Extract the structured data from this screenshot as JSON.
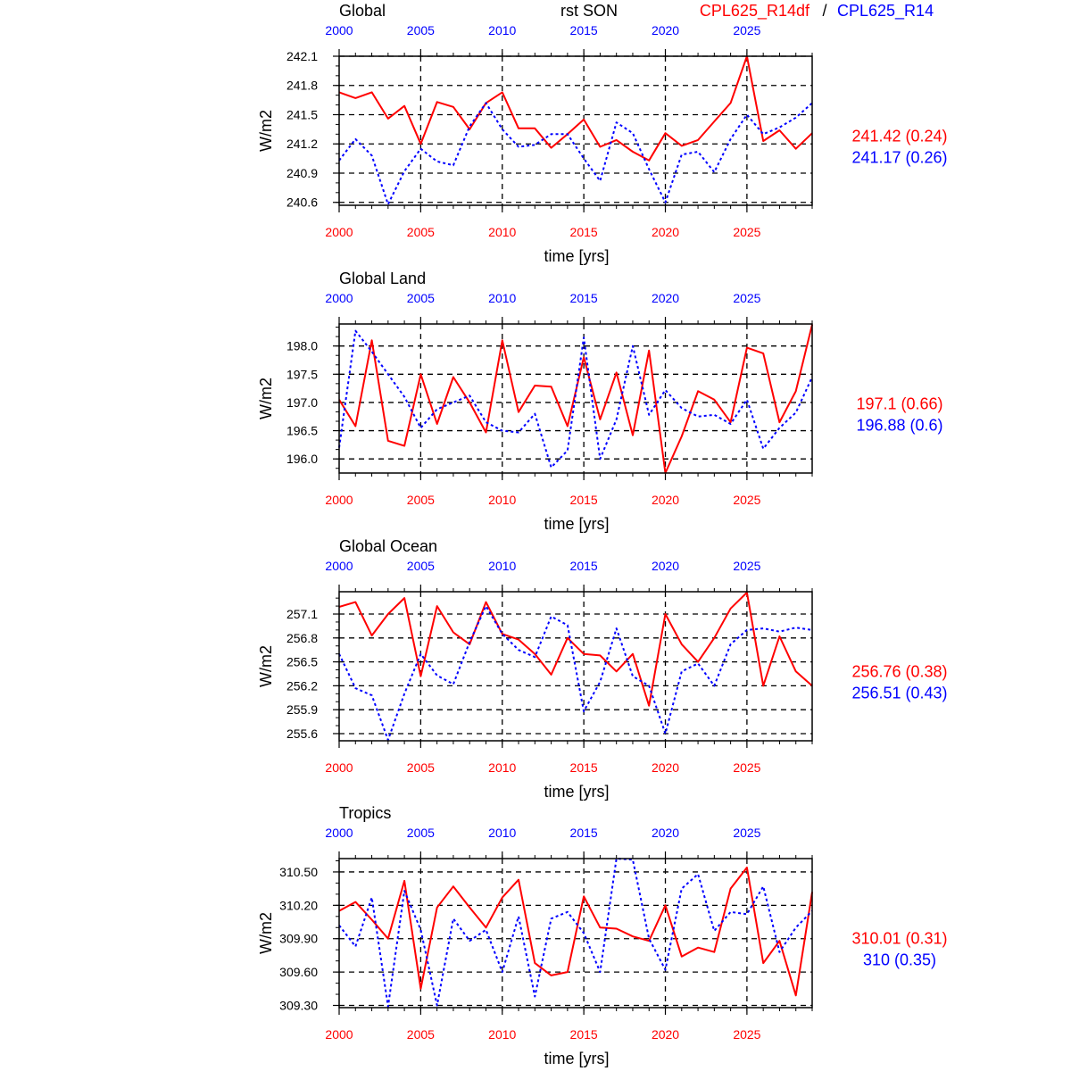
{
  "header": {
    "variable": "rst SON",
    "legend": [
      {
        "name": "CPL625_R14df",
        "color": "#ff0000"
      },
      {
        "separator": "/"
      },
      {
        "name": "CPL625_R14",
        "color": "#0000ff"
      }
    ]
  },
  "chart_data": [
    {
      "type": "line",
      "title": "Global",
      "xlabel": "time [yrs]",
      "ylabel": "W/m2",
      "xlim": [
        2000,
        2029
      ],
      "ylim": [
        240.57,
        242.1
      ],
      "yticks": [
        "240.6",
        "240.9",
        "241.2",
        "241.5",
        "241.8",
        "242.1"
      ],
      "xticks": [
        2000,
        2005,
        2010,
        2015,
        2020,
        2025
      ],
      "grid": true,
      "means": [
        "241.42 (0.24)",
        "241.17 (0.26)"
      ],
      "x": [
        2000,
        2001,
        2002,
        2003,
        2004,
        2005,
        2006,
        2007,
        2008,
        2009,
        2010,
        2011,
        2012,
        2013,
        2014,
        2015,
        2016,
        2017,
        2018,
        2019,
        2020,
        2021,
        2022,
        2023,
        2024,
        2025,
        2026,
        2027,
        2028,
        2029
      ],
      "series": [
        {
          "name": "CPL625_R14df",
          "color": "#ff0000",
          "dash": false,
          "values": [
            241.73,
            241.67,
            241.73,
            241.46,
            241.59,
            241.2,
            241.63,
            241.58,
            241.35,
            241.62,
            241.73,
            241.36,
            241.36,
            241.16,
            241.3,
            241.45,
            241.17,
            241.24,
            241.12,
            241.03,
            241.31,
            241.18,
            241.24,
            241.43,
            241.62,
            242.1,
            241.23,
            241.34,
            241.15,
            241.31
          ]
        },
        {
          "name": "CPL625_R14",
          "color": "#0000ff",
          "dash": true,
          "values": [
            241.03,
            241.25,
            241.08,
            240.58,
            240.92,
            241.15,
            241.02,
            240.98,
            241.38,
            241.62,
            241.35,
            241.17,
            241.19,
            241.3,
            241.3,
            241.05,
            240.82,
            241.42,
            241.31,
            240.94,
            240.6,
            241.09,
            241.12,
            240.91,
            241.25,
            241.5,
            241.3,
            241.37,
            241.47,
            241.62
          ]
        }
      ]
    },
    {
      "type": "line",
      "title": "Global Land",
      "xlabel": "time [yrs]",
      "ylabel": "W/m2",
      "xlim": [
        2000,
        2029
      ],
      "ylim": [
        195.75,
        198.39
      ],
      "yticks": [
        "196.0",
        "196.5",
        "197.0",
        "197.5",
        "198.0"
      ],
      "xticks": [
        2000,
        2005,
        2010,
        2015,
        2020,
        2025
      ],
      "grid": true,
      "means": [
        "197.1 (0.66)",
        "196.88 (0.6)"
      ],
      "x": [
        2000,
        2001,
        2002,
        2003,
        2004,
        2005,
        2006,
        2007,
        2008,
        2009,
        2010,
        2011,
        2012,
        2013,
        2014,
        2015,
        2016,
        2017,
        2018,
        2019,
        2020,
        2021,
        2022,
        2023,
        2024,
        2025,
        2026,
        2027,
        2028,
        2029
      ],
      "series": [
        {
          "name": "CPL625_R14df",
          "color": "#ff0000",
          "dash": false,
          "values": [
            197.05,
            196.58,
            198.1,
            196.32,
            196.23,
            197.5,
            196.62,
            197.45,
            197.0,
            196.47,
            198.1,
            196.83,
            197.3,
            197.28,
            196.58,
            197.8,
            196.7,
            197.53,
            196.42,
            197.92,
            195.75,
            196.4,
            197.2,
            197.05,
            196.65,
            197.97,
            197.87,
            196.65,
            197.2,
            198.38
          ]
        },
        {
          "name": "CPL625_R14",
          "color": "#0000ff",
          "dash": true,
          "values": [
            196.2,
            198.27,
            197.9,
            197.5,
            197.1,
            196.55,
            196.88,
            197.0,
            197.12,
            196.65,
            196.5,
            196.47,
            196.8,
            195.85,
            196.15,
            198.15,
            196.0,
            196.7,
            198.0,
            196.78,
            197.22,
            196.9,
            196.75,
            196.78,
            196.62,
            197.05,
            196.18,
            196.55,
            196.82,
            197.45
          ]
        }
      ]
    },
    {
      "type": "line",
      "title": "Global Ocean",
      "xlabel": "time [yrs]",
      "ylabel": "W/m2",
      "xlim": [
        2000,
        2029
      ],
      "ylim": [
        255.51,
        257.38
      ],
      "yticks": [
        "255.6",
        "255.9",
        "256.2",
        "256.5",
        "256.8",
        "257.1"
      ],
      "xticks": [
        2000,
        2005,
        2010,
        2015,
        2020,
        2025
      ],
      "grid": true,
      "means": [
        "256.76 (0.38)",
        "256.51 (0.43)"
      ],
      "x": [
        2000,
        2001,
        2002,
        2003,
        2004,
        2005,
        2006,
        2007,
        2008,
        2009,
        2010,
        2011,
        2012,
        2013,
        2014,
        2015,
        2016,
        2017,
        2018,
        2019,
        2020,
        2021,
        2022,
        2023,
        2024,
        2025,
        2026,
        2027,
        2028,
        2029
      ],
      "series": [
        {
          "name": "CPL625_R14df",
          "color": "#ff0000",
          "dash": false,
          "values": [
            257.19,
            257.25,
            256.83,
            257.1,
            257.3,
            256.32,
            257.2,
            256.87,
            256.72,
            257.25,
            256.85,
            256.78,
            256.6,
            256.34,
            256.8,
            256.6,
            256.58,
            256.38,
            256.6,
            255.95,
            257.1,
            256.72,
            256.5,
            256.8,
            257.17,
            257.37,
            256.2,
            256.82,
            256.38,
            256.2
          ]
        },
        {
          "name": "CPL625_R14",
          "color": "#0000ff",
          "dash": true,
          "values": [
            256.6,
            256.17,
            256.08,
            255.52,
            256.1,
            256.6,
            256.33,
            256.22,
            256.75,
            257.2,
            256.85,
            256.65,
            256.56,
            257.07,
            256.96,
            255.88,
            256.25,
            256.92,
            256.32,
            256.2,
            255.6,
            256.38,
            256.48,
            256.2,
            256.72,
            256.9,
            256.92,
            256.88,
            256.93,
            256.9
          ]
        }
      ]
    },
    {
      "type": "line",
      "title": "Tropics",
      "xlabel": "time [yrs]",
      "ylabel": "W/m2",
      "xlim": [
        2000,
        2029
      ],
      "ylim": [
        309.28,
        310.62
      ],
      "yticks": [
        "309.30",
        "309.60",
        "309.90",
        "310.20",
        "310.50"
      ],
      "xticks": [
        2000,
        2005,
        2010,
        2015,
        2020,
        2025
      ],
      "grid": true,
      "means": [
        "310.01 (0.31)",
        "310 (0.35)"
      ],
      "x": [
        2000,
        2001,
        2002,
        2003,
        2004,
        2005,
        2006,
        2007,
        2008,
        2009,
        2010,
        2011,
        2012,
        2013,
        2014,
        2015,
        2016,
        2017,
        2018,
        2019,
        2020,
        2021,
        2022,
        2023,
        2024,
        2025,
        2026,
        2027,
        2028,
        2029
      ],
      "series": [
        {
          "name": "CPL625_R14df",
          "color": "#ff0000",
          "dash": false,
          "values": [
            310.15,
            310.23,
            310.07,
            309.9,
            310.42,
            309.45,
            310.18,
            310.37,
            310.18,
            310.0,
            310.27,
            310.43,
            309.68,
            309.57,
            309.6,
            310.28,
            310.0,
            309.99,
            309.92,
            309.88,
            310.2,
            309.74,
            309.82,
            309.78,
            310.35,
            310.54,
            309.68,
            309.88,
            309.39,
            310.32
          ]
        },
        {
          "name": "CPL625_R14",
          "color": "#0000ff",
          "dash": true,
          "values": [
            310.02,
            309.83,
            310.27,
            309.29,
            310.33,
            309.98,
            309.3,
            310.08,
            309.88,
            309.98,
            309.6,
            310.1,
            309.38,
            310.08,
            310.14,
            309.95,
            309.6,
            310.62,
            310.61,
            309.9,
            309.62,
            310.35,
            310.48,
            309.97,
            310.14,
            310.12,
            310.37,
            309.78,
            310.0,
            310.15
          ]
        }
      ]
    }
  ]
}
